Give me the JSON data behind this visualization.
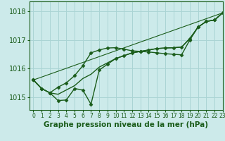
{
  "background_color": "#cceaea",
  "grid_color": "#aad4d4",
  "line_color": "#1a5c1a",
  "marker_color": "#1a5c1a",
  "text_color": "#1a5c1a",
  "xlabel": "Graphe pression niveau de la mer (hPa)",
  "xlim": [
    -0.5,
    23
  ],
  "ylim": [
    1014.55,
    1018.35
  ],
  "yticks": [
    1015,
    1016,
    1017,
    1018
  ],
  "xticks": [
    0,
    1,
    2,
    3,
    4,
    5,
    6,
    7,
    8,
    9,
    10,
    11,
    12,
    13,
    14,
    15,
    16,
    17,
    18,
    19,
    20,
    21,
    22,
    23
  ],
  "series": [
    {
      "x": [
        0,
        1,
        2,
        3,
        4,
        5,
        6,
        7,
        8,
        9,
        10,
        11,
        12,
        13,
        14,
        15,
        16,
        17,
        18,
        19,
        20,
        21,
        22,
        23
      ],
      "y": [
        1015.6,
        1015.3,
        1015.15,
        1015.1,
        1015.25,
        1015.4,
        1015.65,
        1015.8,
        1016.05,
        1016.2,
        1016.35,
        1016.45,
        1016.55,
        1016.6,
        1016.65,
        1016.7,
        1016.72,
        1016.73,
        1016.75,
        1017.05,
        1017.45,
        1017.65,
        1017.7,
        1017.95
      ],
      "marker": null,
      "lw": 1.0
    },
    {
      "x": [
        0,
        1,
        2,
        3,
        4,
        5,
        6,
        7,
        8,
        9,
        10,
        11,
        12,
        13,
        14,
        15,
        16,
        17,
        18,
        19,
        20,
        21,
        22,
        23
      ],
      "y": [
        1015.6,
        1015.3,
        1015.15,
        1014.88,
        1014.9,
        1015.3,
        1015.25,
        1014.75,
        1015.95,
        1016.15,
        1016.35,
        1016.45,
        1016.55,
        1016.6,
        1016.65,
        1016.7,
        1016.72,
        1016.73,
        1016.75,
        1017.05,
        1017.45,
        1017.65,
        1017.7,
        1017.95
      ],
      "marker": "D",
      "lw": 1.0
    },
    {
      "x": [
        0,
        1,
        2,
        3,
        4,
        5,
        6,
        7,
        8,
        9,
        10,
        11,
        12,
        13,
        14,
        15,
        16,
        17,
        18,
        19,
        20,
        21,
        22,
        23
      ],
      "y": [
        1015.6,
        1015.3,
        1015.15,
        1015.35,
        1015.5,
        1015.75,
        1016.1,
        1016.55,
        1016.65,
        1016.72,
        1016.73,
        1016.68,
        1016.62,
        1016.6,
        1016.58,
        1016.55,
        1016.52,
        1016.5,
        1016.48,
        1017.0,
        1017.45,
        1017.65,
        1017.7,
        1017.95
      ],
      "marker": "D",
      "lw": 1.0
    },
    {
      "x": [
        0,
        23
      ],
      "y": [
        1015.6,
        1017.95
      ],
      "marker": null,
      "lw": 0.8
    }
  ],
  "marker_size": 2.5,
  "font_size_xlabel": 7.5,
  "font_size_ytick": 7,
  "font_size_xtick": 5.5
}
